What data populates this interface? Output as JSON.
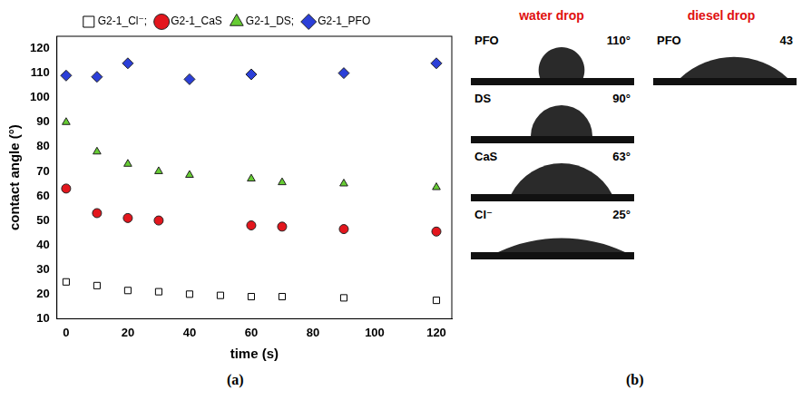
{
  "chart_data": {
    "type": "scatter",
    "x_label": "time (s)",
    "y_label": "contact angle (°)",
    "xlim": [
      -3,
      125
    ],
    "xticks": [
      0,
      20,
      40,
      60,
      80,
      100,
      120
    ],
    "ylim": [
      10,
      125
    ],
    "yticks": [
      10,
      20,
      30,
      40,
      50,
      60,
      70,
      80,
      90,
      100,
      110,
      120
    ],
    "grid": false,
    "legend": "top",
    "series": [
      {
        "name": "G2-1_Cl⁻;",
        "color": "#000000",
        "marker": "open_square",
        "x": [
          0,
          10,
          20,
          30,
          40,
          50,
          60,
          70,
          90,
          120
        ],
        "values": [
          25,
          23.5,
          21.5,
          21,
          20,
          19.5,
          19,
          19,
          18.5,
          17.5
        ]
      },
      {
        "name": "G2-1_CaS",
        "color": "#e3161d",
        "marker": "circle",
        "x": [
          0,
          10,
          20,
          30,
          60,
          70,
          90,
          120
        ],
        "values": [
          63,
          53,
          51,
          50,
          48,
          47.5,
          46.5,
          45.5
        ]
      },
      {
        "name": "G2-1_DS;",
        "color": "#66cc33",
        "marker": "triangle",
        "x": [
          0,
          10,
          20,
          30,
          40,
          60,
          70,
          90,
          120
        ],
        "values": [
          90,
          78,
          73,
          70,
          68.5,
          67,
          65.5,
          65,
          63.5
        ]
      },
      {
        "name": "G2-1_PFO",
        "color": "#2b3fd8",
        "marker": "diamond",
        "x": [
          0,
          10,
          20,
          40,
          60,
          90,
          120
        ],
        "values": [
          109,
          108.5,
          114,
          107.5,
          109.5,
          110,
          114
        ]
      }
    ]
  },
  "figure": {
    "label_a": "(a)",
    "label_b": "(b)",
    "water": {
      "title": "water drop",
      "drops": [
        {
          "name": "PFO",
          "label": "110°",
          "angle": 110
        },
        {
          "name": "DS",
          "label": "90°",
          "angle": 90
        },
        {
          "name": "CaS",
          "label": "63°",
          "angle": 63
        },
        {
          "name": "Cl⁻",
          "label": "25°",
          "angle": 25
        }
      ]
    },
    "diesel": {
      "title": "diesel drop",
      "drops": [
        {
          "name": "PFO",
          "label": "43",
          "angle": 43
        }
      ]
    }
  }
}
